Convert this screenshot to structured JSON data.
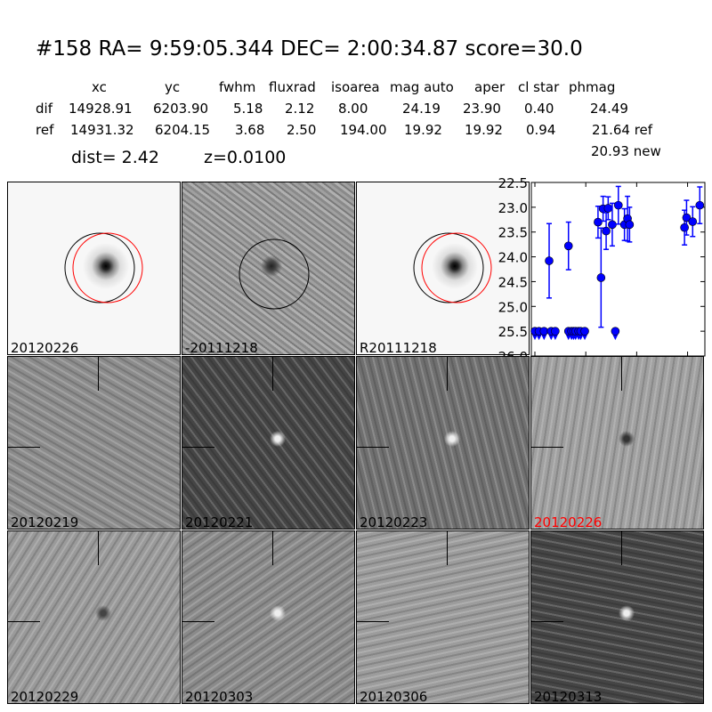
{
  "header": {
    "title": "#158   RA= 9:59:05.344 DEC= 2:00:34.87      score=30.0",
    "columns": [
      "xc",
      "yc",
      "fwhm",
      "fluxrad",
      "isoarea",
      "mag auto",
      "aper",
      "cl star",
      "phmag"
    ],
    "rows": [
      {
        "label": "dif",
        "values": [
          "14928.91",
          "6203.90",
          "5.18",
          "2.12",
          "8.00",
          "24.19",
          "23.90",
          "0.40",
          "24.49"
        ]
      },
      {
        "label": "ref",
        "values": [
          "14931.32",
          "6204.15",
          "3.68",
          "2.50",
          "194.00",
          "19.92",
          "19.92",
          "0.94",
          "21.64 ref"
        ]
      }
    ],
    "extra_phmag": "20.93 new",
    "dist": "dist=  2.42",
    "z": "z=0.0100"
  },
  "top_panels": [
    {
      "label": "20120226"
    },
    {
      "label": "-20111218"
    },
    {
      "label": "R20111218"
    }
  ],
  "grid_panels": [
    {
      "label": "20120219",
      "color": "#000000"
    },
    {
      "label": "20120221",
      "color": "#000000"
    },
    {
      "label": "20120223",
      "color": "#000000"
    },
    {
      "label": "20120226",
      "color": "#ff0000"
    },
    {
      "label": "20120229",
      "color": "#000000"
    },
    {
      "label": "20120303",
      "color": "#000000"
    },
    {
      "label": "20120306",
      "color": "#000000"
    },
    {
      "label": "20120313",
      "color": "#000000"
    }
  ],
  "chart_data": {
    "type": "scatter",
    "xlim": [
      -3.5,
      167
    ],
    "ylim": [
      26.0,
      22.5
    ],
    "y_inverted": true,
    "xticks": [
      "0",
      "50",
      "100",
      "150"
    ],
    "yticks": [
      "22.5",
      "23.0",
      "23.5",
      "24.0",
      "24.5",
      "25.0",
      "25.5",
      "26.0"
    ],
    "marker_color": "#0000ff",
    "detections": [
      {
        "x": 14,
        "y": 24.08,
        "err": 0.75
      },
      {
        "x": 33,
        "y": 23.78,
        "err": 0.48
      },
      {
        "x": 62,
        "y": 23.3,
        "err": 0.32
      },
      {
        "x": 65,
        "y": 24.42,
        "err": 1.0
      },
      {
        "x": 67,
        "y": 23.03,
        "err": 0.25
      },
      {
        "x": 70,
        "y": 23.48,
        "err": 0.37
      },
      {
        "x": 72,
        "y": 23.02,
        "err": 0.23
      },
      {
        "x": 76,
        "y": 23.35,
        "err": 0.43
      },
      {
        "x": 82,
        "y": 22.96,
        "err": 0.38
      },
      {
        "x": 88,
        "y": 23.35,
        "err": 0.32
      },
      {
        "x": 91,
        "y": 23.23,
        "err": 0.45
      },
      {
        "x": 93,
        "y": 23.35,
        "err": 0.35
      },
      {
        "x": 147,
        "y": 23.41,
        "err": 0.35
      },
      {
        "x": 149,
        "y": 23.21,
        "err": 0.35
      },
      {
        "x": 155,
        "y": 23.29,
        "err": 0.3
      },
      {
        "x": 162,
        "y": 22.96,
        "err": 0.37
      }
    ],
    "upper_limits": {
      "y": 25.5,
      "x": [
        0,
        4,
        9,
        16,
        20,
        33,
        36,
        38,
        40,
        43,
        45,
        49,
        79
      ]
    }
  }
}
